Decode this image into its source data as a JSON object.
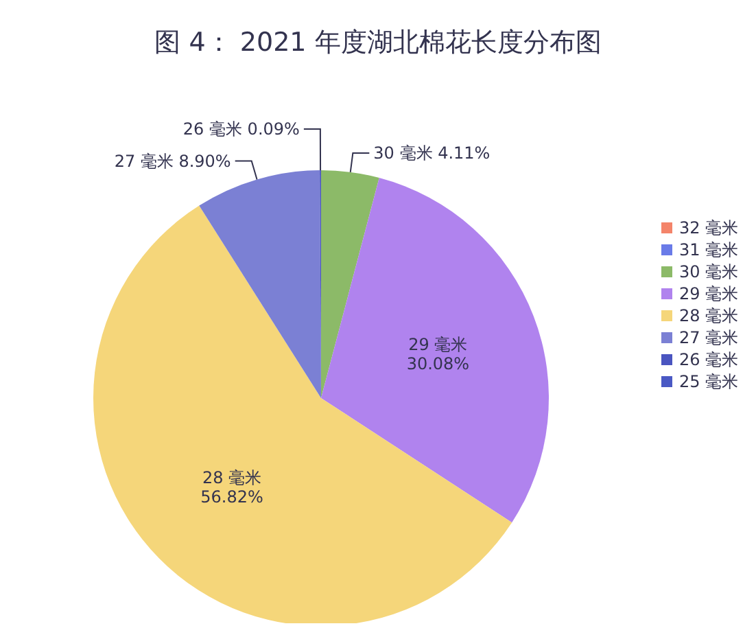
{
  "chart_data": {
    "type": "pie",
    "title": "图 4： 2021 年度湖北棉花长度分布图",
    "categories": [
      "32 毫米",
      "31 毫米",
      "30 毫米",
      "29 毫米",
      "28 毫米",
      "27 毫米",
      "26 毫米",
      "25 毫米"
    ],
    "values": [
      0,
      0,
      4.11,
      30.08,
      56.82,
      8.9,
      0.09,
      0
    ],
    "colors": [
      "#f4846a",
      "#6a7be8",
      "#8cba68",
      "#b083ee",
      "#f5d67a",
      "#7b80d4",
      "#4a55c0",
      "#4a59c4"
    ],
    "value_labels": [
      null,
      null,
      "4.11%",
      "30.08%",
      "56.82%",
      "8.90%",
      "0.09%",
      null
    ],
    "legend": "right"
  }
}
